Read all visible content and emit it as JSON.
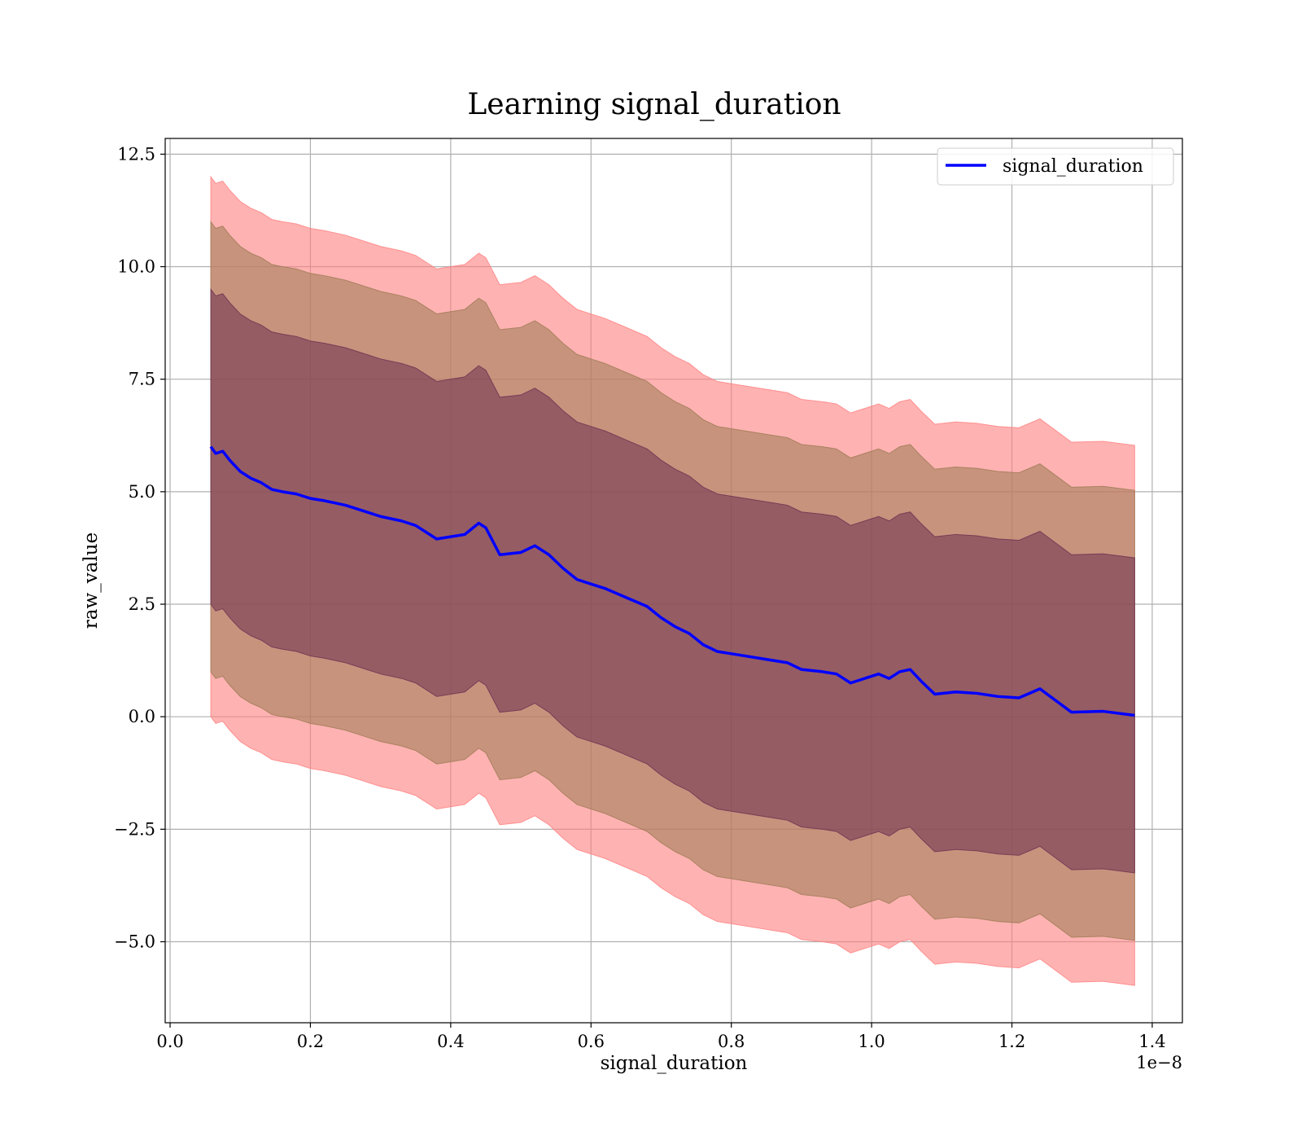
{
  "chart_data": {
    "type": "line",
    "title": "Learning signal_duration",
    "xlabel": "signal_duration",
    "ylabel": "raw_value",
    "x_offset_label": "1e−8",
    "xlim": [
      -0.007,
      1.443
    ],
    "ylim": [
      -6.8,
      12.85
    ],
    "x_ticks": [
      0.0,
      0.2,
      0.4,
      0.6,
      0.8,
      1.0,
      1.2,
      1.4
    ],
    "x_tick_labels": [
      "0.0",
      "0.2",
      "0.4",
      "0.6",
      "0.8",
      "1.0",
      "1.2",
      "1.4"
    ],
    "y_ticks": [
      -5.0,
      -2.5,
      0.0,
      2.5,
      5.0,
      7.5,
      10.0,
      12.5
    ],
    "y_tick_labels": [
      "−5.0",
      "−2.5",
      "0.0",
      "2.5",
      "5.0",
      "7.5",
      "10.0",
      "12.5"
    ],
    "grid": true,
    "legend_position": "top-right",
    "colors": {
      "line": "#0000ff",
      "band_outer": "#ff7f7f",
      "band_middle": "#9b7a52",
      "band_inner": "#6b3050"
    },
    "series": [
      {
        "name": "signal_duration",
        "x": [
          0.058,
          0.065,
          0.075,
          0.085,
          0.1,
          0.115,
          0.13,
          0.145,
          0.16,
          0.18,
          0.2,
          0.22,
          0.25,
          0.28,
          0.3,
          0.33,
          0.35,
          0.37,
          0.38,
          0.4,
          0.42,
          0.44,
          0.45,
          0.47,
          0.5,
          0.52,
          0.54,
          0.56,
          0.58,
          0.6,
          0.62,
          0.65,
          0.68,
          0.7,
          0.72,
          0.74,
          0.76,
          0.78,
          0.8,
          0.82,
          0.84,
          0.86,
          0.88,
          0.9,
          0.93,
          0.95,
          0.97,
          1.0,
          1.01,
          1.025,
          1.04,
          1.055,
          1.07,
          1.09,
          1.12,
          1.15,
          1.18,
          1.21,
          1.24,
          1.285,
          1.33,
          1.375
        ],
        "y": [
          6.0,
          5.85,
          5.9,
          5.7,
          5.45,
          5.3,
          5.2,
          5.05,
          5.0,
          4.95,
          4.85,
          4.8,
          4.7,
          4.55,
          4.45,
          4.35,
          4.25,
          4.05,
          3.95,
          4.0,
          4.05,
          4.3,
          4.2,
          3.6,
          3.65,
          3.8,
          3.6,
          3.3,
          3.05,
          2.95,
          2.85,
          2.65,
          2.45,
          2.2,
          2.0,
          1.85,
          1.6,
          1.45,
          1.4,
          1.35,
          1.3,
          1.25,
          1.2,
          1.05,
          1.0,
          0.95,
          0.75,
          0.9,
          0.95,
          0.85,
          1.0,
          1.05,
          0.8,
          0.5,
          0.55,
          0.52,
          0.45,
          0.42,
          0.62,
          0.1,
          0.12,
          0.03
        ]
      }
    ],
    "bands": [
      {
        "offset": 6.0,
        "fill": "#ff7f7f",
        "opacity": 0.6
      },
      {
        "offset": 5.0,
        "fill": "#9b7a52",
        "opacity": 0.55
      },
      {
        "offset": 3.5,
        "fill": "#6b3050",
        "opacity": 0.55
      }
    ]
  }
}
